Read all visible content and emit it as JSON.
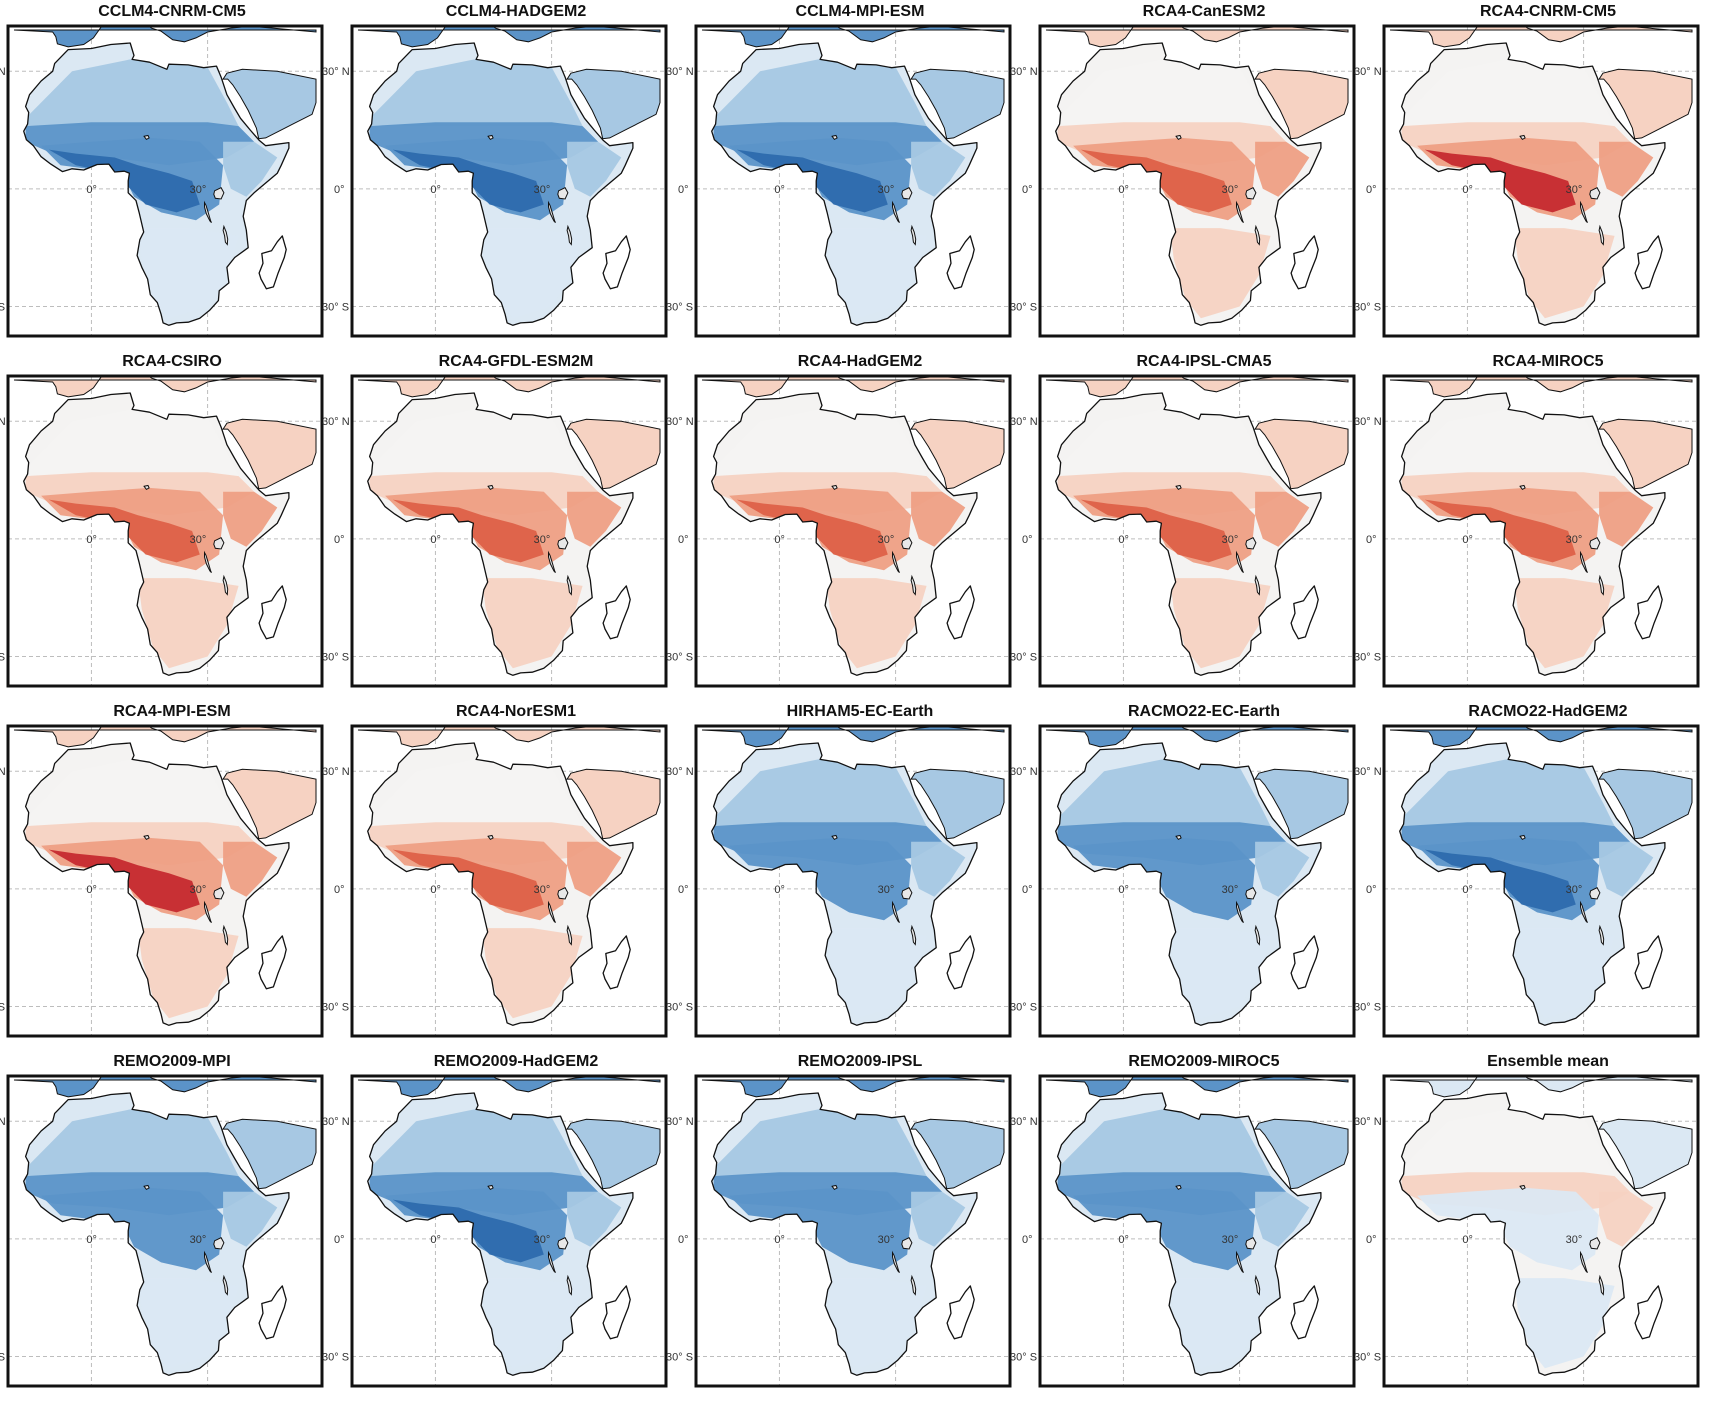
{
  "figure": {
    "latitude_labels": [
      "30° N",
      "0°",
      "30° S"
    ],
    "longitude_labels": [
      "0°",
      "30°"
    ],
    "colors": {
      "blue_dark": "#2d6aad",
      "blue_mid": "#5b93c8",
      "blue_light": "#a7c8e3",
      "blue_pale": "#dbe8f3",
      "neutral": "#f4f3f2",
      "red_pale": "#f6d2c2",
      "red_light": "#ee9f84",
      "red_mid": "#dd6148",
      "red_dark": "#c52a2f",
      "ocean": "#ffffff"
    },
    "panels": [
      {
        "title": "CCLM4-CNRM-CM5",
        "signal": "wet",
        "intensity": 0.75
      },
      {
        "title": "CCLM4-HADGEM2",
        "signal": "wet",
        "intensity": 0.85
      },
      {
        "title": "CCLM4-MPI-ESM",
        "signal": "wet",
        "intensity": 0.8
      },
      {
        "title": "RCA4-CanESM2",
        "signal": "dry",
        "intensity": 0.6
      },
      {
        "title": "RCA4-CNRM-CM5",
        "signal": "dry",
        "intensity": 0.85
      },
      {
        "title": "RCA4-CSIRO",
        "signal": "dry",
        "intensity": 0.5
      },
      {
        "title": "RCA4-GFDL-ESM2M",
        "signal": "dry",
        "intensity": 0.65
      },
      {
        "title": "RCA4-HadGEM2",
        "signal": "dry",
        "intensity": 0.6
      },
      {
        "title": "RCA4-IPSL-CMA5",
        "signal": "dry",
        "intensity": 0.65
      },
      {
        "title": "RCA4-MIROC5",
        "signal": "dry",
        "intensity": 0.6
      },
      {
        "title": "RCA4-MPI-ESM",
        "signal": "dry",
        "intensity": 0.75
      },
      {
        "title": "RCA4-NorESM1",
        "signal": "dry",
        "intensity": 0.7
      },
      {
        "title": "HIRHAM5-EC-Earth",
        "signal": "wet",
        "intensity": 0.55
      },
      {
        "title": "RACMO22-EC-Earth",
        "signal": "wet",
        "intensity": 0.55
      },
      {
        "title": "RACMO22-HadGEM2",
        "signal": "wet",
        "intensity": 0.65
      },
      {
        "title": "REMO2009-MPI",
        "signal": "wet",
        "intensity": 0.6
      },
      {
        "title": "REMO2009-HadGEM2",
        "signal": "wet",
        "intensity": 0.65
      },
      {
        "title": "REMO2009-IPSL",
        "signal": "wet",
        "intensity": 0.6
      },
      {
        "title": "REMO2009-MIROC5",
        "signal": "wet",
        "intensity": 0.55
      },
      {
        "title": "Ensemble mean",
        "signal": "neutral",
        "intensity": 0.3
      }
    ]
  }
}
